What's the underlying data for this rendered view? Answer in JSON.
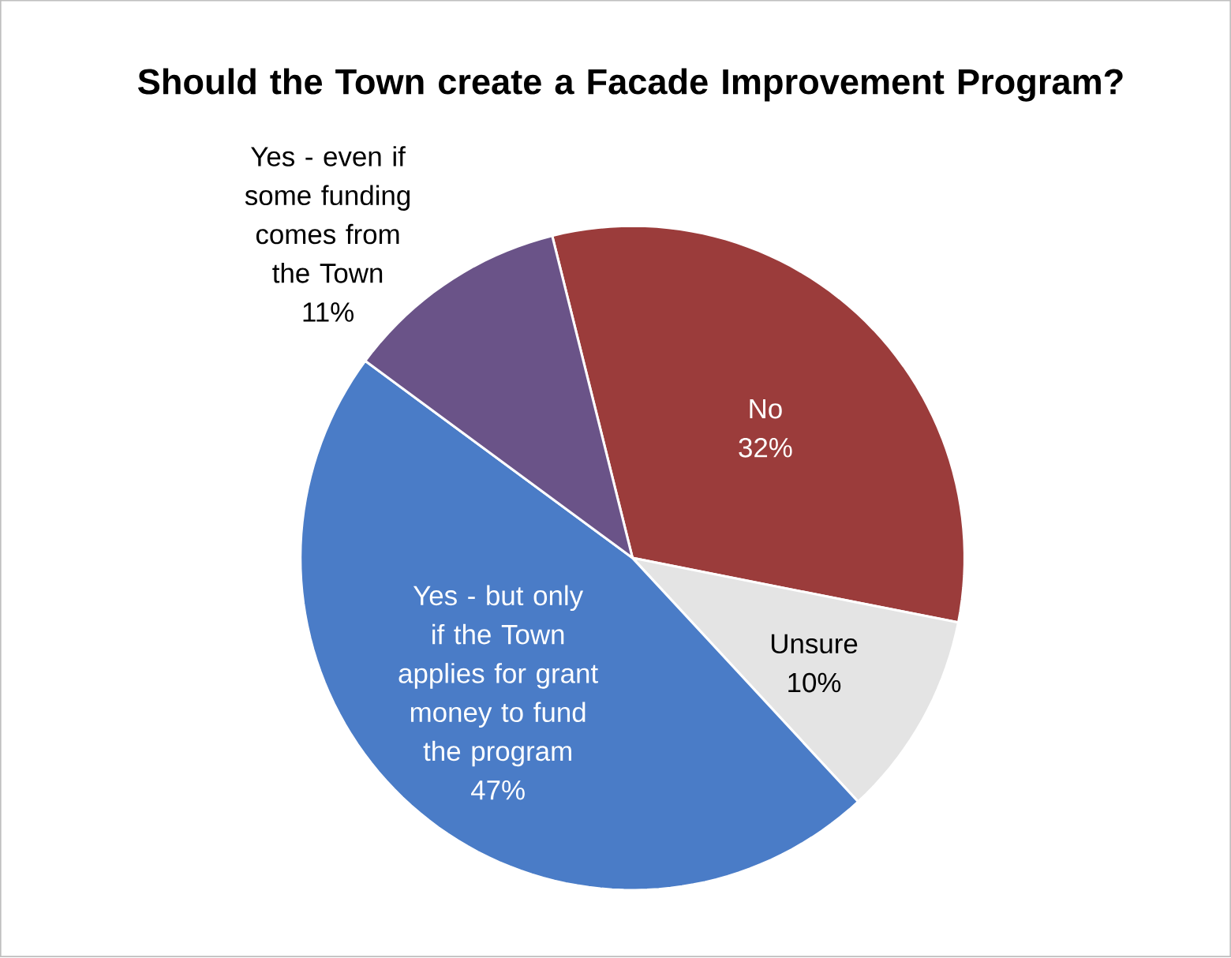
{
  "chart_data": {
    "type": "pie",
    "title": "Should the Town create a Facade Improvement Program?",
    "categories": [
      "No",
      "Unsure",
      "Yes - but only if the Town applies for grant money to fund the program",
      "Yes - even if some funding comes from the Town"
    ],
    "values": [
      32,
      10,
      47,
      11
    ],
    "colors": [
      "#9b3c3b",
      "#e4e4e4",
      "#4a7cc7",
      "#6a5388"
    ],
    "value_labels": [
      "32%",
      "10%",
      "47%",
      "11%"
    ]
  }
}
